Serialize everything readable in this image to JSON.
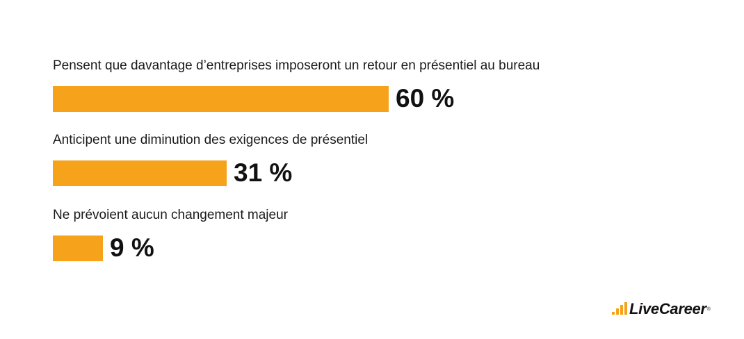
{
  "chart_data": {
    "type": "bar",
    "orientation": "horizontal",
    "categories": [
      "Pensent que davantage d’entreprises imposeront un retour en présentiel au bureau",
      "Anticipent une diminution des exigences de présentiel",
      "Ne prévoient aucun changement majeur"
    ],
    "values": [
      60,
      31,
      9
    ],
    "value_labels": [
      "60 %",
      "31 %",
      "9 %"
    ],
    "unit": "%",
    "xlim": [
      0,
      100
    ],
    "grid": false,
    "legend": "none",
    "bar_color": "#f6a21a"
  },
  "logo": {
    "text": "LiveCareer",
    "registered": "®",
    "icon": "livecareer-bars-icon",
    "accent_color": "#f6a21a"
  }
}
